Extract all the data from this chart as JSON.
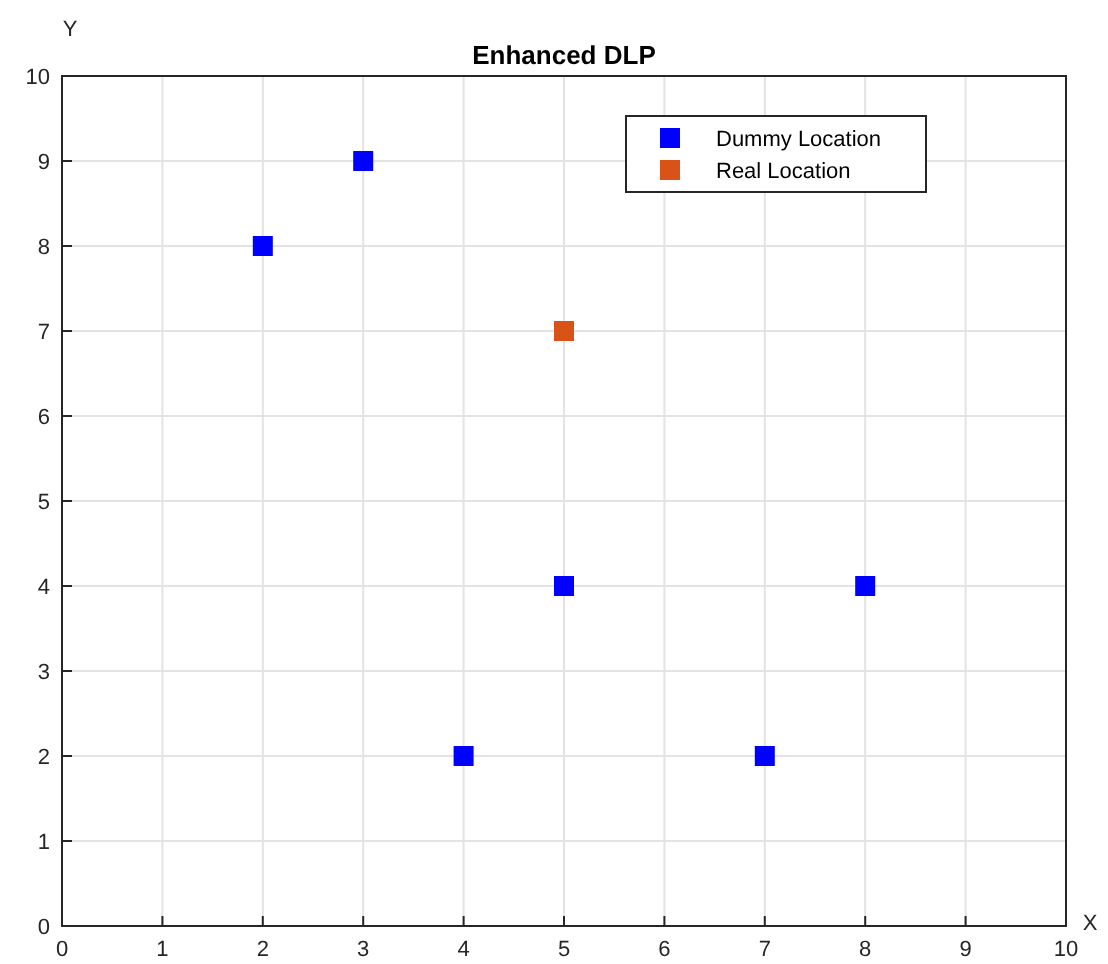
{
  "chart_data": {
    "type": "scatter",
    "title": "Enhanced DLP",
    "xlabel": "X",
    "ylabel": "Y",
    "xlim": [
      0,
      10
    ],
    "ylim": [
      0,
      10
    ],
    "xticks": [
      0,
      1,
      2,
      3,
      4,
      5,
      6,
      7,
      8,
      9,
      10
    ],
    "yticks": [
      0,
      1,
      2,
      3,
      4,
      5,
      6,
      7,
      8,
      9,
      10
    ],
    "grid": true,
    "legend": "top right",
    "marker": "square",
    "series": [
      {
        "name": "Dummy Location",
        "color": "#0000ff",
        "x": [
          2,
          3,
          5,
          4,
          7,
          8
        ],
        "values": [
          8,
          9,
          4,
          2,
          2,
          4
        ]
      },
      {
        "name": "Real Location",
        "color": "#d95319",
        "x": [
          5
        ],
        "values": [
          7
        ]
      }
    ]
  }
}
